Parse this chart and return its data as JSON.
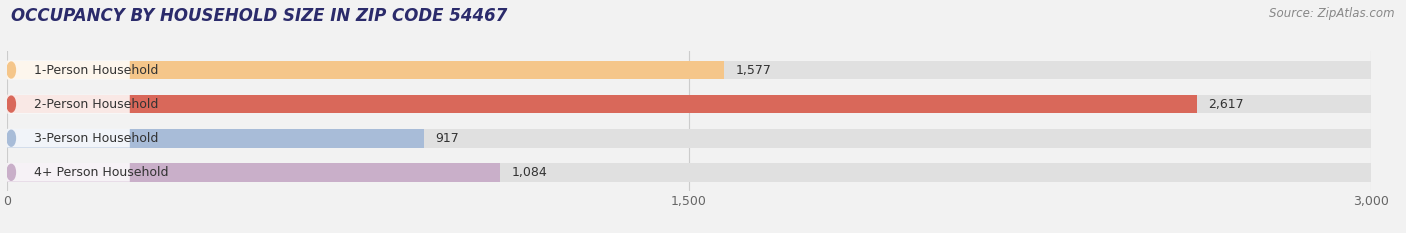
{
  "title": "OCCUPANCY BY HOUSEHOLD SIZE IN ZIP CODE 54467",
  "source": "Source: ZipAtlas.com",
  "categories": [
    "1-Person Household",
    "2-Person Household",
    "3-Person Household",
    "4+ Person Household"
  ],
  "values": [
    1577,
    2617,
    917,
    1084
  ],
  "bar_colors": [
    "#f5c68a",
    "#d9685a",
    "#a8bcd8",
    "#c9afc9"
  ],
  "label_bg_colors": [
    "#f5c68a",
    "#d9685a",
    "#a8bcd8",
    "#c9afc9"
  ],
  "value_labels": [
    "1,577",
    "2,617",
    "917",
    "1,084"
  ],
  "xlim": [
    0,
    3000
  ],
  "xticks": [
    0,
    1500,
    3000
  ],
  "background_color": "#f2f2f2",
  "bar_bg_color": "#e0e0e0",
  "title_fontsize": 12,
  "source_fontsize": 8.5,
  "label_fontsize": 9,
  "value_fontsize": 9,
  "bar_height": 0.55
}
